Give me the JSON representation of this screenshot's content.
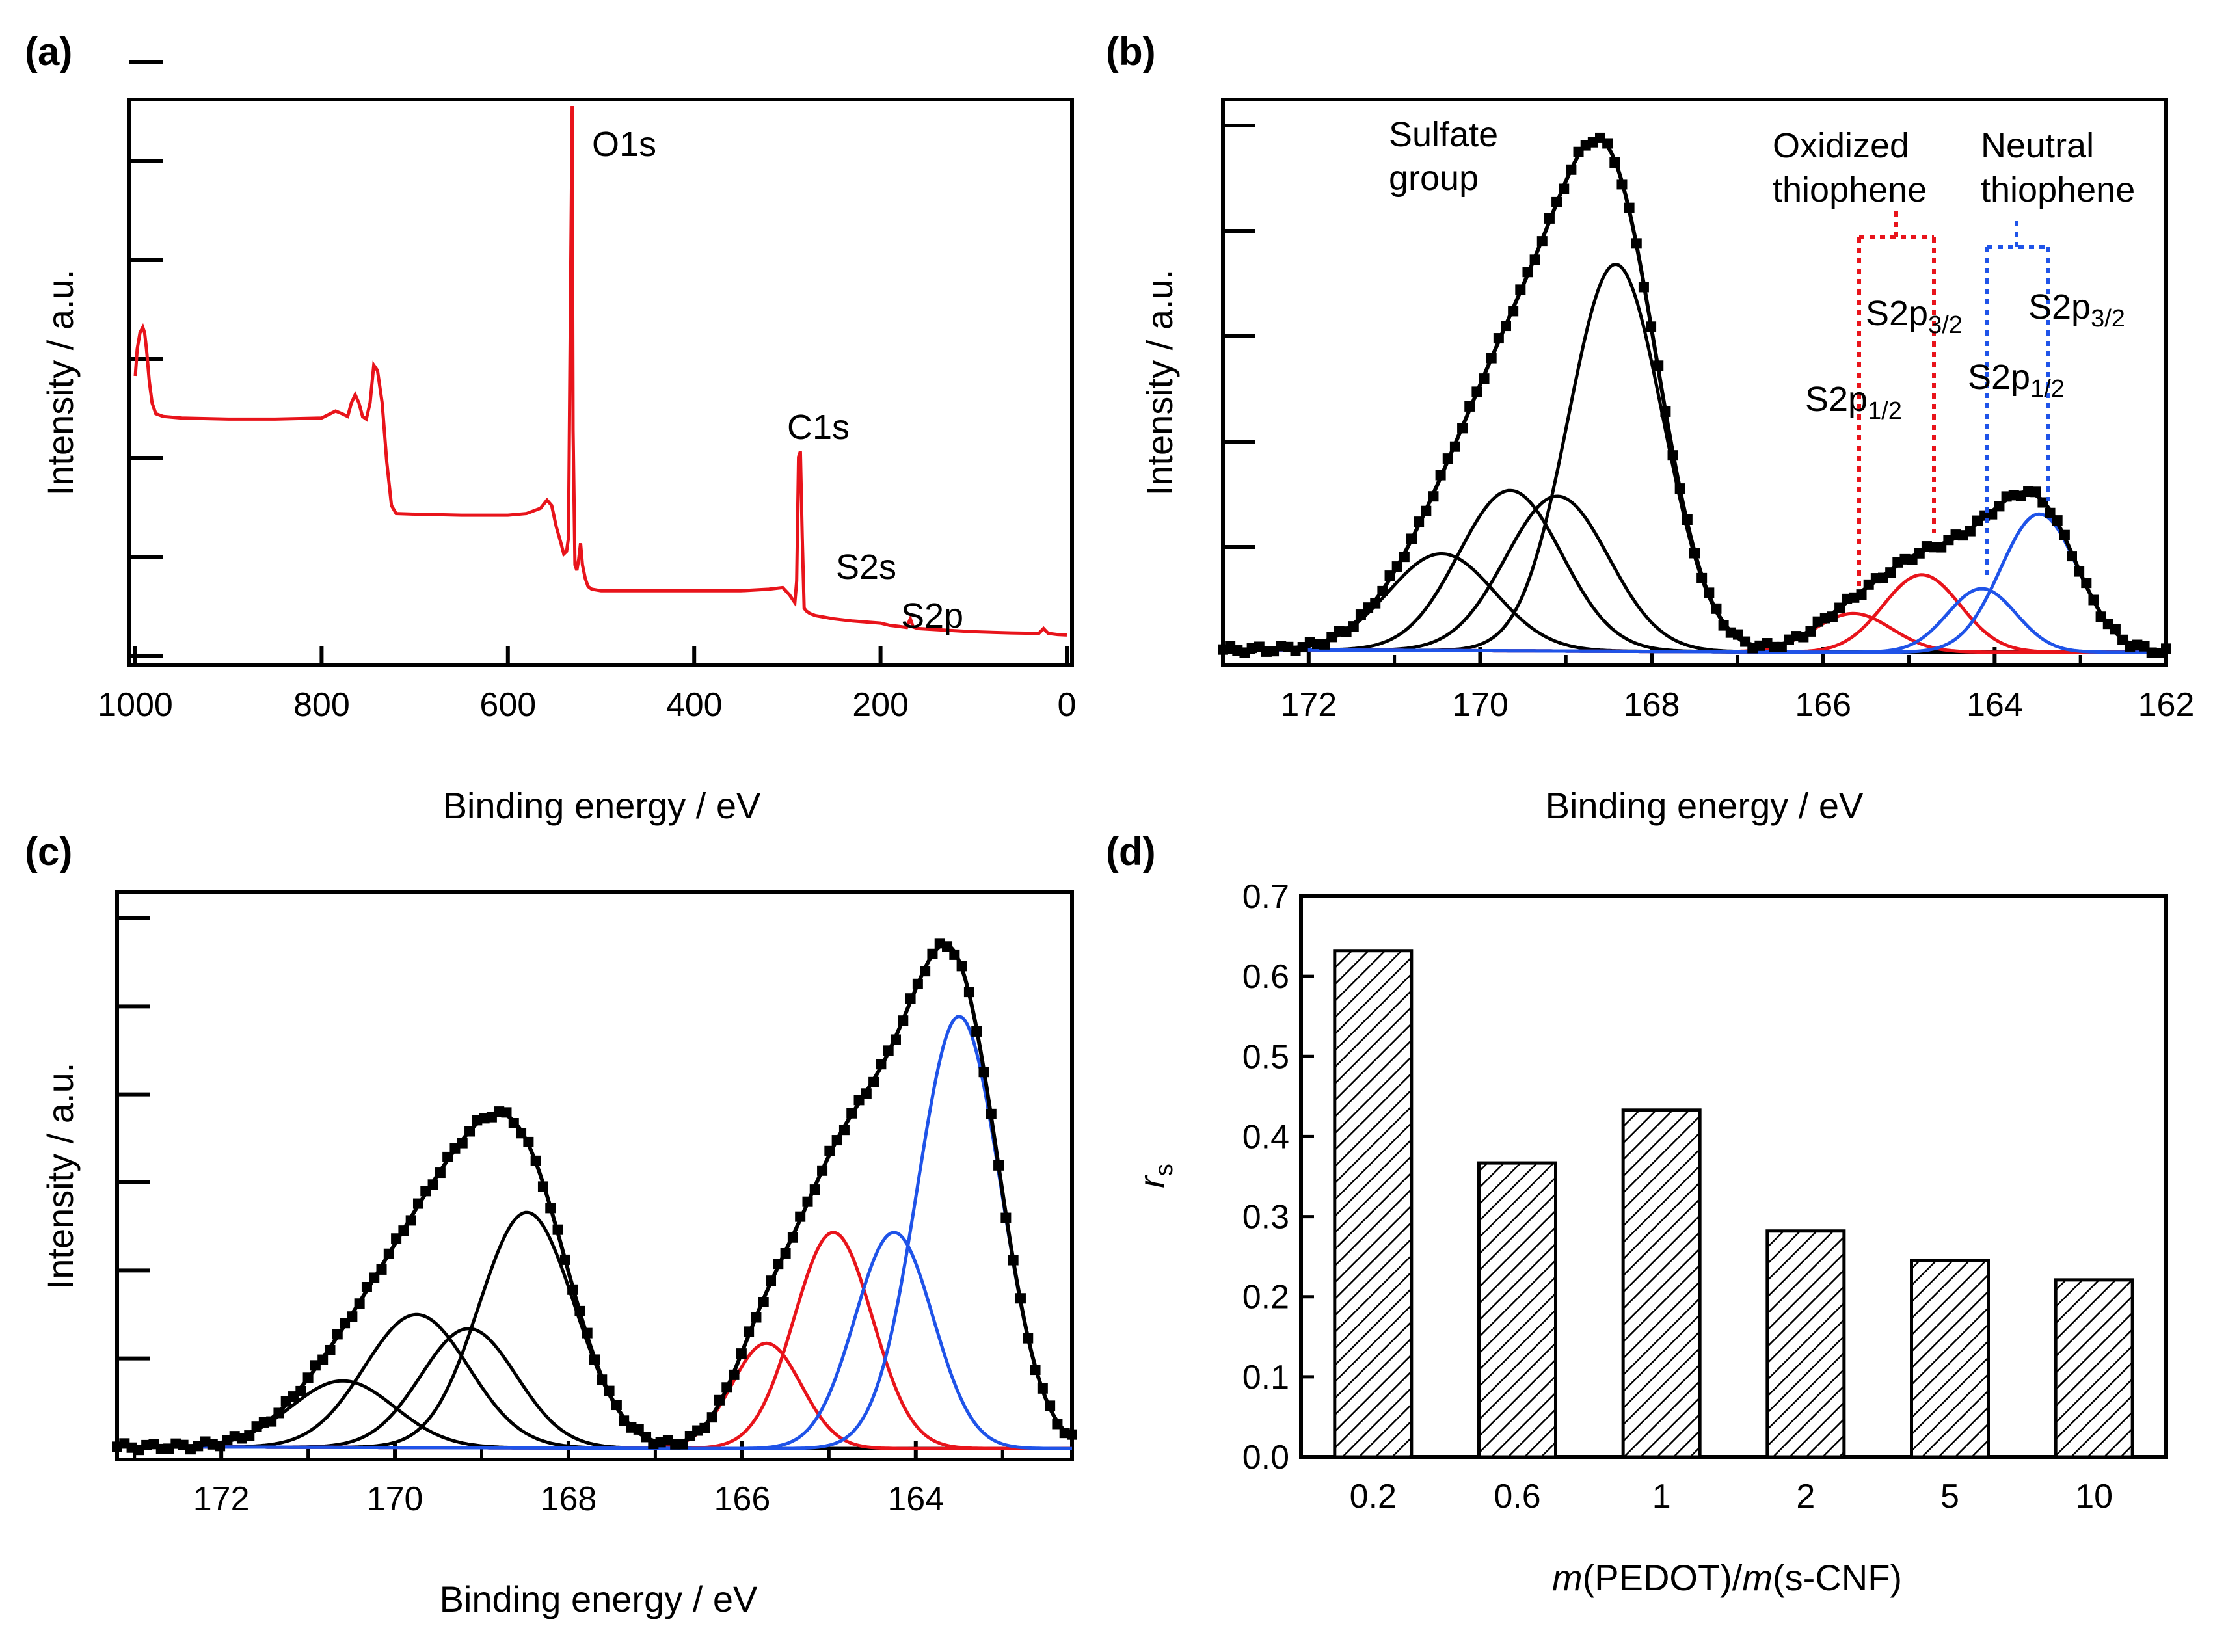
{
  "chart_data": [
    {
      "panel": "(a)",
      "type": "line",
      "title": "",
      "xlabel": "Binding energy / eV",
      "ylabel": "Intensity / a.u.",
      "xlim": [
        1000,
        0
      ],
      "ylim": [
        0,
        100
      ],
      "xticks": [
        "1000",
        "800",
        "600",
        "400",
        "200",
        "0"
      ],
      "series": [
        {
          "name": "survey",
          "color": "#e8141b",
          "x": [
            1000,
            998,
            995,
            992,
            990,
            988,
            985,
            982,
            978,
            970,
            950,
            900,
            850,
            800,
            785,
            778,
            772,
            768,
            764,
            760,
            756,
            752,
            748,
            744,
            740,
            735,
            730,
            725,
            720,
            700,
            650,
            600,
            580,
            565,
            558,
            553,
            548,
            543,
            540,
            537,
            535,
            533,
            531,
            530,
            528,
            526,
            524,
            522,
            520,
            517,
            514,
            510,
            500,
            450,
            400,
            350,
            320,
            305,
            298,
            292,
            290,
            288,
            286,
            284,
            282,
            280,
            276,
            270,
            260,
            250,
            230,
            200,
            190,
            180,
            172,
            168,
            165,
            160,
            140,
            100,
            60,
            30,
            25,
            20,
            10,
            0
          ],
          "y": [
            50,
            55,
            58,
            59,
            58,
            55,
            49,
            45,
            43,
            42.5,
            42.2,
            42,
            42,
            42.2,
            43.5,
            43,
            42.5,
            45,
            46.5,
            45,
            42.5,
            42,
            45,
            52,
            51,
            45,
            34,
            26,
            24.5,
            24.4,
            24.2,
            24.2,
            24.5,
            25.5,
            27,
            26,
            22,
            19,
            17,
            17.5,
            20,
            60,
            100,
            40,
            15,
            14,
            16,
            19,
            15,
            12.5,
            11,
            10.5,
            10.2,
            10.2,
            10.2,
            10.2,
            10.5,
            10.8,
            9.5,
            8,
            12,
            35,
            36,
            20,
            7,
            6.5,
            6,
            5.6,
            5.3,
            5,
            4.6,
            4.2,
            3.8,
            3.6,
            3.4,
            5,
            3.5,
            3.2,
            3,
            2.6,
            2.4,
            2.3,
            3.2,
            2.3,
            2.1,
            2
          ]
        }
      ],
      "annotations": [
        "O1s",
        "C1s",
        "S2s",
        "S2p"
      ]
    },
    {
      "panel": "(b)",
      "type": "line",
      "title": "",
      "xlabel": "Binding energy / eV",
      "ylabel": "Intensity / a.u.",
      "xlim": [
        173,
        162
      ],
      "ylim": [
        0,
        100
      ],
      "xticks": [
        "172",
        "170",
        "168",
        "166",
        "164",
        "162"
      ],
      "series": [
        {
          "name": "data",
          "color": "#000000",
          "marker": "square",
          "x_range": [
            173,
            162
          ]
        },
        {
          "name": "fit envelope",
          "color": "#000000"
        },
        {
          "name": "Sulfate group component 1",
          "color": "#000000",
          "center": 170.45,
          "height": 17.5,
          "width": 0.62
        },
        {
          "name": "Sulfate group component 2",
          "color": "#000000",
          "center": 169.65,
          "height": 29,
          "width": 0.6
        },
        {
          "name": "Sulfate group component 3",
          "color": "#000000",
          "center": 169.1,
          "height": 28,
          "width": 0.6
        },
        {
          "name": "Sulfate group component 4",
          "color": "#000000",
          "center": 168.42,
          "height": 70,
          "width": 0.55
        },
        {
          "name": "Oxidized thiophene S2p1/2",
          "color": "#e8141b",
          "center": 165.65,
          "height": 7,
          "width": 0.45
        },
        {
          "name": "Oxidized thiophene S2p3/2",
          "color": "#e8141b",
          "center": 164.85,
          "height": 14,
          "width": 0.45
        },
        {
          "name": "Neutral thiophene S2p1/2",
          "color": "#1f53e8",
          "center": 164.15,
          "height": 11.5,
          "width": 0.4
        },
        {
          "name": "Neutral thiophene S2p3/2",
          "color": "#1f53e8",
          "center": 163.48,
          "height": 25,
          "width": 0.45
        }
      ],
      "annotations": [
        "Sulfate",
        "group",
        "Oxidized",
        "thiophene",
        "Neutral",
        "thiophene",
        "S2p",
        "3/2",
        "1/2"
      ]
    },
    {
      "panel": "(c)",
      "type": "line",
      "title": "",
      "xlabel": "Binding energy / eV",
      "ylabel": "Intensity / a.u.",
      "xlim": [
        173.2,
        162.2
      ],
      "ylim": [
        0,
        100
      ],
      "xticks": [
        "172",
        "170",
        "168",
        "166",
        "164"
      ],
      "series": [
        {
          "name": "data",
          "color": "#000000",
          "marker": "square",
          "x_range": [
            173.2,
            162.2
          ]
        },
        {
          "name": "fit envelope",
          "color": "#000000"
        },
        {
          "name": "Sulfate group component 1",
          "color": "#000000",
          "center": 170.6,
          "height": 12,
          "width": 0.6
        },
        {
          "name": "Sulfate group component 2",
          "color": "#000000",
          "center": 169.75,
          "height": 24,
          "width": 0.6
        },
        {
          "name": "Sulfate group component 3",
          "color": "#000000",
          "center": 169.15,
          "height": 21.5,
          "width": 0.55
        },
        {
          "name": "Sulfate group component 4",
          "color": "#000000",
          "center": 168.48,
          "height": 42.5,
          "width": 0.55
        },
        {
          "name": "Oxidized thiophene S2p1/2",
          "color": "#e8141b",
          "center": 165.72,
          "height": 19,
          "width": 0.4
        },
        {
          "name": "Oxidized thiophene S2p3/2",
          "color": "#e8141b",
          "center": 164.95,
          "height": 39,
          "width": 0.45
        },
        {
          "name": "Neutral thiophene S2p1/2",
          "color": "#1f53e8",
          "center": 164.25,
          "height": 39,
          "width": 0.45
        },
        {
          "name": "Neutral thiophene S2p3/2",
          "color": "#1f53e8",
          "center": 163.5,
          "height": 78,
          "width": 0.48
        }
      ]
    },
    {
      "panel": "(d)",
      "type": "bar",
      "title": "",
      "xlabel_italic": "m",
      "xlabel_parts": [
        "(PEDOT)/",
        "(s-CNF)"
      ],
      "ylabel_main": "r",
      "ylabel_sub": "s",
      "categories": [
        "0.2",
        "0.6",
        "1",
        "2",
        "5",
        "10"
      ],
      "values": [
        0.632,
        0.367,
        0.433,
        0.282,
        0.245,
        0.221
      ],
      "ylim": [
        0.0,
        0.7
      ],
      "yticks": [
        "0.0",
        "0.1",
        "0.2",
        "0.3",
        "0.4",
        "0.5",
        "0.6",
        "0.7"
      ],
      "fill": "hatched"
    }
  ],
  "labels": {
    "a": "(a)",
    "b": "(b)",
    "c": "(c)",
    "d": "(d)"
  }
}
